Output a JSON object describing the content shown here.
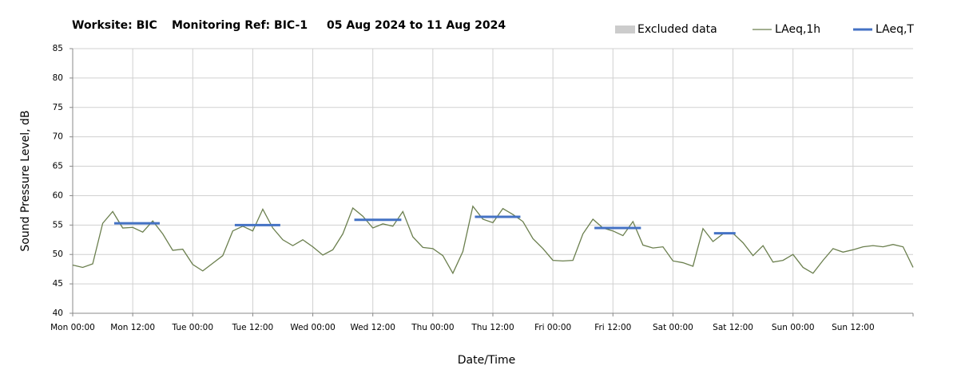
{
  "chart_data": {
    "type": "line",
    "title": [
      "Worksite: BIC",
      "Monitoring Ref: BIC-1",
      "05 Aug 2024 to 11 Aug 2024"
    ],
    "x_label": "Date/Time",
    "y_label": "Sound Pressure Level, dB",
    "excluded_label": "Excluded data",
    "excluded_color": "#cccccc",
    "xlim": [
      0,
      168
    ],
    "xticks": [
      {
        "value": 0,
        "label": "Mon 00:00"
      },
      {
        "value": 12,
        "label": "Mon 12:00"
      },
      {
        "value": 24,
        "label": "Tue 00:00"
      },
      {
        "value": 36,
        "label": "Tue 12:00"
      },
      {
        "value": 48,
        "label": "Wed 00:00"
      },
      {
        "value": 60,
        "label": "Wed 12:00"
      },
      {
        "value": 72,
        "label": "Thu 00:00"
      },
      {
        "value": 84,
        "label": "Thu 12:00"
      },
      {
        "value": 96,
        "label": "Fri 00:00"
      },
      {
        "value": 108,
        "label": "Fri 12:00"
      },
      {
        "value": 120,
        "label": "Sat 00:00"
      },
      {
        "value": 132,
        "label": "Sat 12:00"
      },
      {
        "value": 144,
        "label": "Sun 00:00"
      },
      {
        "value": 156,
        "label": "Sun 12:00"
      }
    ],
    "ylim": [
      40,
      85
    ],
    "yticks": [
      40,
      45,
      50,
      55,
      60,
      65,
      70,
      75,
      80,
      85
    ],
    "grid": true,
    "x": [
      0,
      2,
      4,
      6,
      8,
      10,
      12,
      14,
      16,
      18,
      20,
      22,
      24,
      26,
      28,
      30,
      32,
      34,
      36,
      38,
      40,
      42,
      44,
      46,
      48,
      50,
      52,
      54,
      56,
      58,
      60,
      62,
      64,
      66,
      68,
      70,
      72,
      74,
      76,
      78,
      80,
      82,
      84,
      86,
      88,
      90,
      92,
      94,
      96,
      98,
      100,
      102,
      104,
      106,
      108,
      110,
      112,
      114,
      116,
      118,
      120,
      122,
      124,
      126,
      128,
      130,
      132,
      134,
      136,
      138,
      140,
      142,
      144,
      146,
      148,
      150,
      152,
      154,
      156,
      158,
      160,
      162,
      164,
      166,
      168
    ],
    "series": [
      {
        "name": "LAeq,1h",
        "color": "#6b7f4e",
        "values": [
          48.2,
          47.8,
          48.4,
          55.3,
          57.3,
          54.5,
          54.6,
          53.8,
          55.7,
          53.5,
          50.7,
          50.9,
          48.3,
          47.2,
          48.5,
          49.8,
          54,
          54.8,
          54,
          57.7,
          54.5,
          52.5,
          51.5,
          52.5,
          51.3,
          49.9,
          50.8,
          53.5,
          57.9,
          56.5,
          54.5,
          55.2,
          54.8,
          57.3,
          53,
          51.2,
          51,
          49.8,
          46.8,
          50.5,
          58.2,
          56,
          55.4,
          57.8,
          56.8,
          55.6,
          52.7,
          51,
          49,
          48.9,
          49,
          53.5,
          56,
          54.5,
          54,
          53.2,
          55.6,
          51.6,
          51.1,
          51.3,
          48.9,
          48.6,
          48,
          54.4,
          52.2,
          53.5,
          53.6,
          52,
          49.8,
          51.5,
          48.7,
          49,
          50,
          47.8,
          46.8,
          49,
          51,
          50.4,
          50.8,
          51.3,
          51.5,
          51.3,
          51.7,
          51.3,
          47.8
        ]
      },
      {
        "name": "LAeq,T",
        "color": "#4472c4",
        "segments": [
          {
            "x": [
              8.3,
              17.4
            ],
            "value": 55.3
          },
          {
            "x": [
              32.4,
              41.5
            ],
            "value": 55
          },
          {
            "x": [
              56.3,
              65.7
            ],
            "value": 55.9
          },
          {
            "x": [
              80.4,
              89.5
            ],
            "value": 56.4
          },
          {
            "x": [
              104.3,
              113.6
            ],
            "value": 54.5
          },
          {
            "x": [
              128.2,
              132.5
            ],
            "value": 53.6
          }
        ]
      }
    ]
  }
}
